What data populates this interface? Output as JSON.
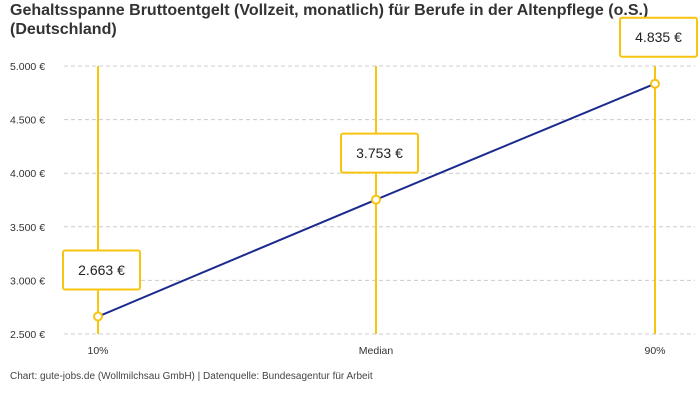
{
  "chart_data": {
    "type": "line",
    "title": "Gehaltsspanne Bruttoentgelt (Vollzeit, monatlich) für Berufe in der Altenpflege (o.S.) (Deutschland)",
    "categories": [
      "10%",
      "Median",
      "90%"
    ],
    "values": [
      2663,
      3753,
      4835
    ],
    "data_labels": [
      "2.663 €",
      "3.753 €",
      "4.835 €"
    ],
    "ylim": [
      2500,
      5000
    ],
    "yticks": [
      2500,
      3000,
      3500,
      4000,
      4500,
      5000
    ],
    "ytick_labels": [
      "2.500 €",
      "3.000 €",
      "3.500 €",
      "4.000 €",
      "4.500 €",
      "5.000 €"
    ],
    "xlabel": "",
    "ylabel": "",
    "grid": "horizontal dashed",
    "colors": {
      "line": "#1b2a8f",
      "marker": "#f8c40f",
      "grid": "#cccccc"
    }
  },
  "footer": "Chart: gute-jobs.de (Wollmilchsau GmbH) | Datenquelle: Bundesagentur für Arbeit"
}
